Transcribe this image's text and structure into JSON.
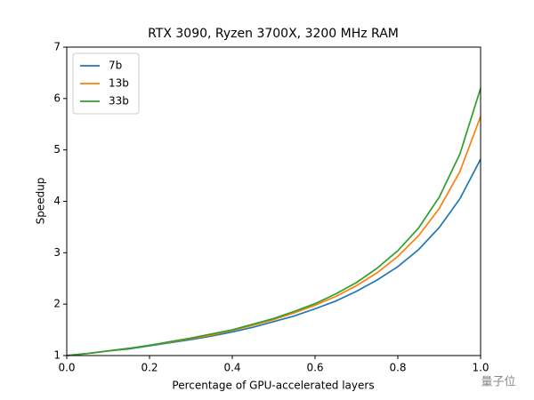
{
  "chart_data": {
    "type": "line",
    "title": "RTX 3090, Ryzen 3700X, 3200 MHz RAM",
    "x_label": "Percentage of GPU-accelerated layers",
    "y_label": "Speedup",
    "x": [
      0,
      0.05,
      0.1,
      0.15,
      0.2,
      0.25,
      0.3,
      0.35,
      0.4,
      0.45,
      0.5,
      0.55,
      0.6,
      0.65,
      0.7,
      0.75,
      0.8,
      0.85,
      0.9,
      0.95,
      1.0
    ],
    "series": [
      {
        "name": "7b",
        "color": "#1f77b4",
        "values": [
          1.0,
          1.04,
          1.09,
          1.13,
          1.19,
          1.25,
          1.31,
          1.38,
          1.46,
          1.55,
          1.66,
          1.77,
          1.91,
          2.06,
          2.25,
          2.47,
          2.73,
          3.06,
          3.49,
          4.05,
          4.82
        ]
      },
      {
        "name": "13b",
        "color": "#ff7f0e",
        "values": [
          1.0,
          1.04,
          1.09,
          1.14,
          1.2,
          1.26,
          1.33,
          1.4,
          1.49,
          1.59,
          1.7,
          1.83,
          1.98,
          2.15,
          2.36,
          2.61,
          2.93,
          3.33,
          3.86,
          4.58,
          5.65
        ]
      },
      {
        "name": "33b",
        "color": "#2ca02c",
        "values": [
          1.0,
          1.04,
          1.09,
          1.14,
          1.2,
          1.27,
          1.34,
          1.42,
          1.5,
          1.61,
          1.72,
          1.86,
          2.01,
          2.2,
          2.42,
          2.7,
          3.04,
          3.48,
          4.08,
          4.92,
          6.2
        ]
      }
    ],
    "xlim": [
      0,
      1.0
    ],
    "xticks": [
      {
        "value": 0,
        "label": "0.0"
      },
      0.2,
      0.4,
      0.6,
      0.8,
      {
        "value": 1.0,
        "label": "1.0"
      }
    ],
    "ylim": [
      1,
      7
    ],
    "yticks": [
      1,
      2,
      3,
      4,
      5,
      6,
      7
    ],
    "grid": false,
    "legend": "upper-left"
  },
  "watermark": "量子位"
}
